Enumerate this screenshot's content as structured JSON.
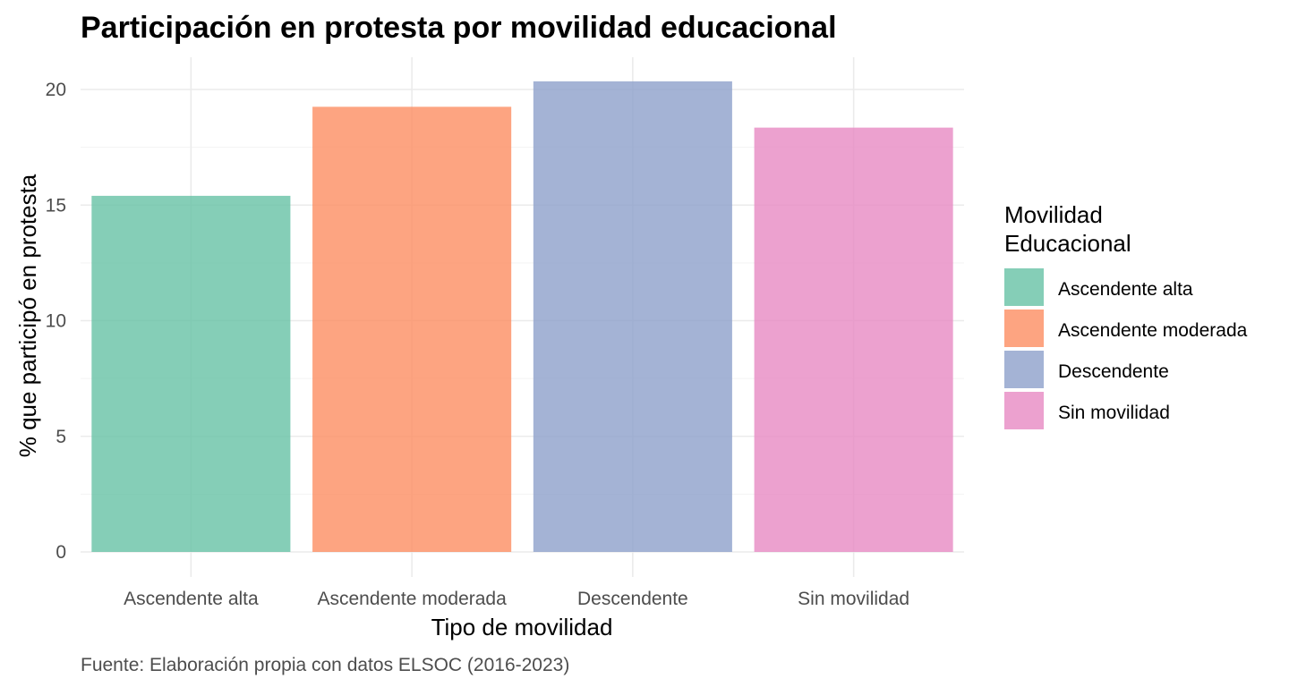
{
  "chart_data": {
    "type": "bar",
    "title": "Participación en protesta por movilidad educacional",
    "xlabel": "Tipo de movilidad",
    "ylabel": "% que participó en protesta",
    "caption": "Fuente: Elaboración propia con datos ELSOC (2016-2023)",
    "categories": [
      "Ascendente alta",
      "Ascendente moderada",
      "Descendente",
      "Sin movilidad"
    ],
    "values": [
      15.4,
      19.25,
      20.35,
      18.35
    ],
    "colors": [
      "#66c2a5",
      "#fc8d62",
      "#8da0cb",
      "#e78ac3"
    ],
    "ylim": [
      0,
      21
    ],
    "yticks": [
      0,
      5,
      10,
      15,
      20
    ],
    "grid": true,
    "legend": {
      "title_lines": [
        "Movilidad",
        "Educacional"
      ],
      "position": "right",
      "entries": [
        "Ascendente alta",
        "Ascendente moderada",
        "Descendente",
        "Sin movilidad"
      ]
    }
  }
}
